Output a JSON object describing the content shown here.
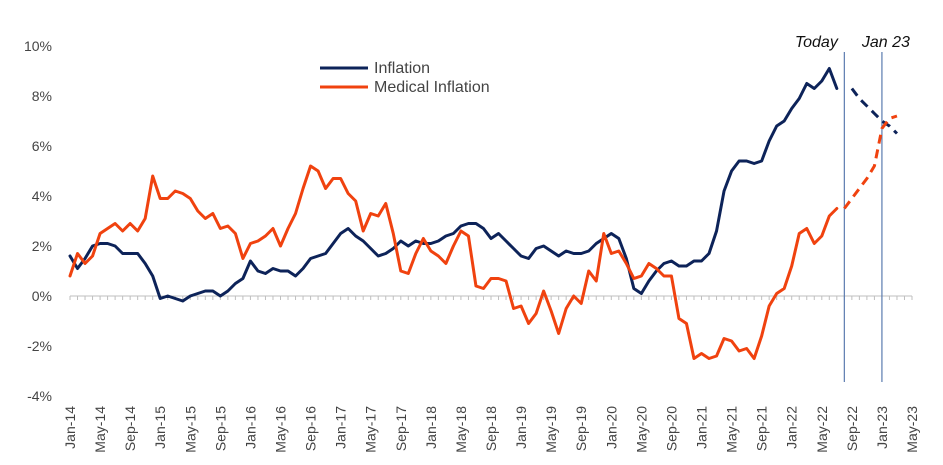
{
  "chart_data": {
    "type": "line",
    "yticks": [
      "10%",
      "8%",
      "6%",
      "4%",
      "2%",
      "0%",
      "-2%",
      "-4%"
    ],
    "ylim": [
      -4,
      10
    ],
    "xlabels": [
      "Jan-14",
      "May-14",
      "Sep-14",
      "Jan-15",
      "May-15",
      "Sep-15",
      "Jan-16",
      "May-16",
      "Sep-16",
      "Jan-17",
      "May-17",
      "Sep-17",
      "Jan-18",
      "May-18",
      "Sep-18",
      "Jan-19",
      "May-19",
      "Sep-19",
      "Jan-20",
      "May-20",
      "Sep-20",
      "Jan-21",
      "May-21",
      "Sep-21",
      "Jan-22",
      "May-22",
      "Sep-22",
      "Jan-23",
      "May-23"
    ],
    "x_start": "Jan-14",
    "legend": {
      "position": "top-center"
    },
    "grid": false,
    "series": [
      {
        "name": "Inflation",
        "color": "#0D2359",
        "values": [
          1.6,
          1.1,
          1.5,
          2.0,
          2.1,
          2.1,
          2.0,
          1.7,
          1.7,
          1.7,
          1.3,
          0.8,
          -0.1,
          0.0,
          -0.1,
          -0.2,
          0.0,
          0.1,
          0.2,
          0.2,
          0.0,
          0.2,
          0.5,
          0.7,
          1.4,
          1.0,
          0.9,
          1.1,
          1.0,
          1.0,
          0.8,
          1.1,
          1.5,
          1.6,
          1.7,
          2.1,
          2.5,
          2.7,
          2.4,
          2.2,
          1.9,
          1.6,
          1.7,
          1.9,
          2.2,
          2.0,
          2.2,
          2.1,
          2.1,
          2.2,
          2.4,
          2.5,
          2.8,
          2.9,
          2.9,
          2.7,
          2.3,
          2.5,
          2.2,
          1.9,
          1.6,
          1.5,
          1.9,
          2.0,
          1.8,
          1.6,
          1.8,
          1.7,
          1.7,
          1.8,
          2.1,
          2.3,
          2.5,
          2.3,
          1.5,
          0.3,
          0.1,
          0.6,
          1.0,
          1.3,
          1.4,
          1.2,
          1.2,
          1.4,
          1.4,
          1.7,
          2.6,
          4.2,
          5.0,
          5.4,
          5.4,
          5.3,
          5.4,
          6.2,
          6.8,
          7.0,
          7.5,
          7.9,
          8.5,
          8.3,
          8.6,
          9.1,
          8.3
        ],
        "forecast_values": [
          8.3,
          7.9,
          7.6,
          7.3,
          7.0,
          6.8,
          6.5
        ],
        "forecast_start": "Sep-22"
      },
      {
        "name": "Medical Inflation",
        "color": "#F0420F",
        "values": [
          0.8,
          1.7,
          1.3,
          1.6,
          2.5,
          2.7,
          2.9,
          2.6,
          2.9,
          2.6,
          3.1,
          4.8,
          3.9,
          3.9,
          4.2,
          4.1,
          3.9,
          3.4,
          3.1,
          3.3,
          2.7,
          2.8,
          2.5,
          1.5,
          2.1,
          2.2,
          2.4,
          2.7,
          2.0,
          2.7,
          3.3,
          4.3,
          5.2,
          5.0,
          4.3,
          4.7,
          4.7,
          4.1,
          3.8,
          2.6,
          3.3,
          3.2,
          3.7,
          2.5,
          1.0,
          0.9,
          1.7,
          2.3,
          1.8,
          1.6,
          1.3,
          2.0,
          2.6,
          2.4,
          0.4,
          0.3,
          0.7,
          0.7,
          0.6,
          -0.5,
          -0.4,
          -1.1,
          -0.7,
          0.2,
          -0.6,
          -1.5,
          -0.5,
          0.0,
          -0.3,
          1.0,
          0.6,
          2.5,
          1.7,
          1.8,
          1.3,
          0.7,
          0.8,
          1.3,
          1.1,
          0.8,
          0.8,
          -0.9,
          -1.1,
          -2.5,
          -2.3,
          -2.5,
          -2.4,
          -1.7,
          -1.8,
          -2.2,
          -2.1,
          -2.5,
          -1.6,
          -0.4,
          0.1,
          0.3,
          1.2,
          2.5,
          2.7,
          2.1,
          2.4,
          3.2,
          3.5
        ],
        "forecast_values": [
          3.5,
          3.9,
          4.3,
          4.7,
          5.2,
          6.7,
          7.1,
          7.2
        ],
        "forecast_start": "Aug-22"
      }
    ],
    "annotations": [
      {
        "text": "Today",
        "at": "Aug-22"
      },
      {
        "text": "Jan 23",
        "at": "Jan-23"
      }
    ]
  }
}
